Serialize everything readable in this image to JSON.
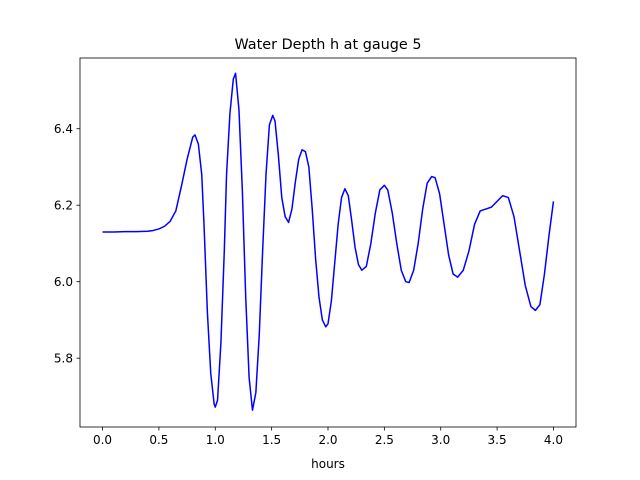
{
  "chart_data": {
    "type": "line",
    "title": "Water Depth h at gauge 5",
    "xlabel": "hours",
    "ylabel": "",
    "xlim": [
      -0.2,
      4.2
    ],
    "ylim": [
      5.62,
      6.585
    ],
    "xticks": [
      0.0,
      0.5,
      1.0,
      1.5,
      2.0,
      2.5,
      3.0,
      3.5,
      4.0
    ],
    "xtick_labels": [
      "0.0",
      "0.5",
      "1.0",
      "1.5",
      "2.0",
      "2.5",
      "3.0",
      "3.5",
      "4.0"
    ],
    "yticks": [
      5.8,
      6.0,
      6.2,
      6.4
    ],
    "ytick_labels": [
      "5.8",
      "6.0",
      "6.2",
      "6.4"
    ],
    "grid": false,
    "series": [
      {
        "color": "#0000ff",
        "x": [
          0.0,
          0.1,
          0.2,
          0.3,
          0.4,
          0.45,
          0.5,
          0.55,
          0.6,
          0.65,
          0.7,
          0.75,
          0.8,
          0.82,
          0.85,
          0.88,
          0.9,
          0.93,
          0.96,
          0.99,
          1.0,
          1.02,
          1.05,
          1.08,
          1.1,
          1.13,
          1.16,
          1.18,
          1.21,
          1.24,
          1.27,
          1.3,
          1.33,
          1.36,
          1.39,
          1.42,
          1.45,
          1.48,
          1.51,
          1.53,
          1.56,
          1.59,
          1.62,
          1.65,
          1.68,
          1.71,
          1.74,
          1.77,
          1.8,
          1.83,
          1.86,
          1.89,
          1.92,
          1.95,
          1.98,
          2.0,
          2.03,
          2.06,
          2.09,
          2.12,
          2.15,
          2.18,
          2.21,
          2.24,
          2.27,
          2.3,
          2.34,
          2.38,
          2.42,
          2.46,
          2.5,
          2.53,
          2.57,
          2.61,
          2.65,
          2.69,
          2.72,
          2.76,
          2.8,
          2.84,
          2.88,
          2.92,
          2.95,
          2.99,
          3.03,
          3.07,
          3.11,
          3.15,
          3.2,
          3.25,
          3.3,
          3.35,
          3.4,
          3.45,
          3.5,
          3.55,
          3.6,
          3.65,
          3.7,
          3.75,
          3.8,
          3.84,
          3.88,
          3.92,
          3.96,
          4.0
        ],
        "y": [
          6.13,
          6.13,
          6.131,
          6.131,
          6.132,
          6.134,
          6.138,
          6.145,
          6.158,
          6.185,
          6.25,
          6.32,
          6.378,
          6.384,
          6.36,
          6.28,
          6.15,
          5.92,
          5.76,
          5.68,
          5.672,
          5.69,
          5.84,
          6.08,
          6.28,
          6.44,
          6.53,
          6.545,
          6.45,
          6.24,
          5.96,
          5.75,
          5.664,
          5.71,
          5.86,
          6.08,
          6.28,
          6.41,
          6.435,
          6.42,
          6.33,
          6.22,
          6.17,
          6.155,
          6.19,
          6.26,
          6.32,
          6.345,
          6.34,
          6.3,
          6.19,
          6.06,
          5.96,
          5.9,
          5.882,
          5.89,
          5.95,
          6.05,
          6.15,
          6.22,
          6.243,
          6.225,
          6.16,
          6.09,
          6.045,
          6.03,
          6.04,
          6.1,
          6.18,
          6.24,
          6.252,
          6.24,
          6.18,
          6.1,
          6.03,
          6.0,
          5.998,
          6.03,
          6.1,
          6.19,
          6.258,
          6.275,
          6.272,
          6.23,
          6.15,
          6.07,
          6.02,
          6.012,
          6.03,
          6.08,
          6.15,
          6.185,
          6.19,
          6.195,
          6.21,
          6.225,
          6.22,
          6.17,
          6.08,
          5.99,
          5.935,
          5.925,
          5.94,
          6.02,
          6.12,
          6.21
        ]
      }
    ]
  }
}
